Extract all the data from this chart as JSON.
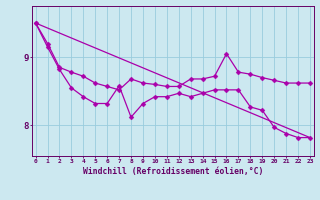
{
  "xlabel": "Windchill (Refroidissement éolien,°C)",
  "bg_color": "#cce8f0",
  "line_color": "#aa00aa",
  "grid_color": "#99ccdd",
  "axis_color": "#660066",
  "tick_label_color": "#660066",
  "x_ticks": [
    0,
    1,
    2,
    3,
    4,
    5,
    6,
    7,
    8,
    9,
    10,
    11,
    12,
    13,
    14,
    15,
    16,
    17,
    18,
    19,
    20,
    21,
    22,
    23
  ],
  "y_ticks": [
    8,
    9
  ],
  "ylim": [
    7.55,
    9.75
  ],
  "xlim": [
    -0.3,
    23.3
  ],
  "series1": [
    9.5,
    9.2,
    8.85,
    8.78,
    8.72,
    8.62,
    8.57,
    8.52,
    8.68,
    8.62,
    8.6,
    8.57,
    8.57,
    8.68,
    8.68,
    8.72,
    9.05,
    8.78,
    8.75,
    8.7,
    8.66,
    8.62,
    8.62,
    8.62
  ],
  "series2": [
    9.5,
    9.15,
    8.82,
    8.55,
    8.42,
    8.32,
    8.32,
    8.58,
    8.12,
    8.32,
    8.42,
    8.42,
    8.47,
    8.42,
    8.47,
    8.52,
    8.52,
    8.52,
    8.27,
    8.22,
    7.97,
    7.88,
    7.82,
    7.82
  ],
  "trend_x": [
    0,
    23
  ],
  "trend_y": [
    9.5,
    7.82
  ],
  "marker_size": 2.5
}
